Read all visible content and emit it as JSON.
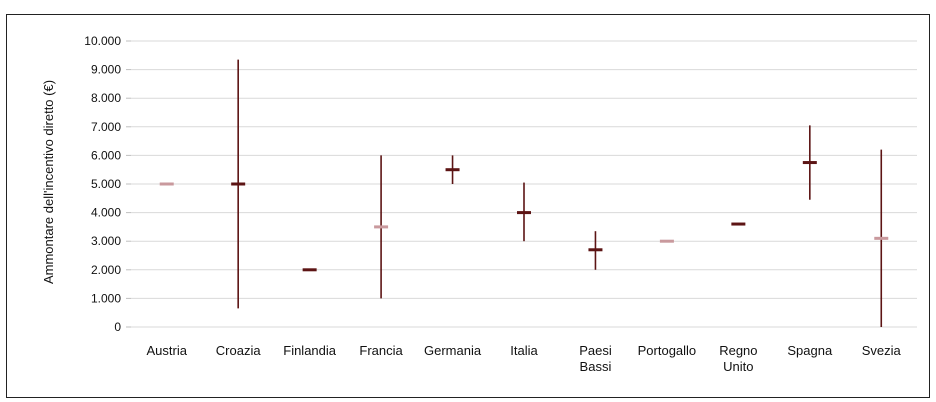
{
  "chart_data": {
    "type": "range",
    "title": "",
    "xlabel": "",
    "ylabel": "Ammontare dell'incentivo diretto (€)",
    "ylim": [
      0,
      10000
    ],
    "yticks": [
      0,
      1000,
      2000,
      3000,
      4000,
      5000,
      6000,
      7000,
      8000,
      9000,
      10000
    ],
    "ytick_labels": [
      "0",
      "1.000",
      "2.000",
      "3.000",
      "4.000",
      "5.000",
      "6.000",
      "7.000",
      "8.000",
      "9.000",
      "10.000"
    ],
    "grid": true,
    "categories": [
      {
        "label": [
          "Austria"
        ],
        "min": 5000,
        "max": 5000,
        "mean": 5000,
        "light": true
      },
      {
        "label": [
          "Croazia"
        ],
        "min": 650,
        "max": 9350,
        "mean": 5000,
        "light": false
      },
      {
        "label": [
          "Finlandia"
        ],
        "min": 2000,
        "max": 2000,
        "mean": 2000,
        "light": false
      },
      {
        "label": [
          "Francia"
        ],
        "min": 1000,
        "max": 6000,
        "mean": 3500,
        "light": true
      },
      {
        "label": [
          "Germania"
        ],
        "min": 5000,
        "max": 6000,
        "mean": 5500,
        "light": false
      },
      {
        "label": [
          "Italia"
        ],
        "min": 3000,
        "max": 5050,
        "mean": 4000,
        "light": false
      },
      {
        "label": [
          "Paesi",
          "Bassi"
        ],
        "min": 2000,
        "max": 3350,
        "mean": 2700,
        "light": false
      },
      {
        "label": [
          "Portogallo"
        ],
        "min": 3000,
        "max": 3000,
        "mean": 3000,
        "light": true
      },
      {
        "label": [
          "Regno",
          "Unito"
        ],
        "min": 3600,
        "max": 3600,
        "mean": 3600,
        "light": false
      },
      {
        "label": [
          "Spagna"
        ],
        "min": 4450,
        "max": 7050,
        "mean": 5750,
        "light": false
      },
      {
        "label": [
          "Svezia"
        ],
        "min": 0,
        "max": 6200,
        "mean": 3100,
        "light": true
      }
    ],
    "colors": {
      "whisker": "#5c1414",
      "mean_dark": "#5c1414",
      "mean_light": "#c9999d",
      "grid": "#d9d9d9",
      "axis_text": "#111111"
    }
  }
}
